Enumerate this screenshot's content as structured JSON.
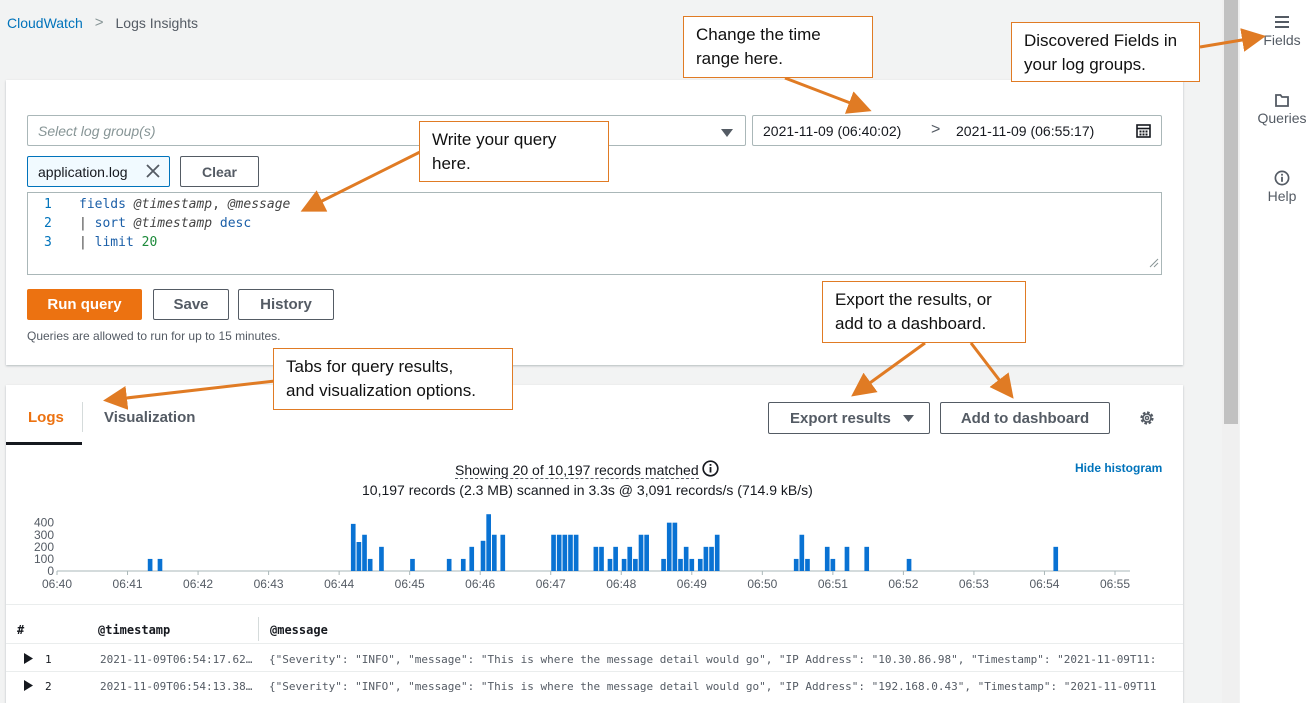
{
  "breadcrumb": {
    "root": "CloudWatch",
    "current": "Logs Insights"
  },
  "query": {
    "log_group_placeholder": "Select log group(s)",
    "time_start": "2021-11-09 (06:40:02)",
    "time_end": "2021-11-09 (06:55:17)",
    "selected_group": "application.log",
    "clear_label": "Clear",
    "lines": [
      {
        "num": "1",
        "tokens": [
          {
            "t": "fields ",
            "c": "kw"
          },
          {
            "t": "@timestamp",
            "c": "field"
          },
          {
            "t": ", ",
            "c": "plain"
          },
          {
            "t": "@message",
            "c": "field"
          }
        ]
      },
      {
        "num": "2",
        "tokens": [
          {
            "t": "| ",
            "c": "pipe"
          },
          {
            "t": "sort ",
            "c": "kw"
          },
          {
            "t": "@timestamp",
            "c": "field"
          },
          {
            "t": " desc",
            "c": "kw"
          }
        ]
      },
      {
        "num": "3",
        "tokens": [
          {
            "t": "| ",
            "c": "pipe"
          },
          {
            "t": "limit ",
            "c": "kw"
          },
          {
            "t": "20",
            "c": "num"
          }
        ]
      }
    ],
    "run_label": "Run query",
    "save_label": "Save",
    "history_label": "History",
    "note": "Queries are allowed to run for up to 15 minutes."
  },
  "results": {
    "tabs": [
      {
        "label": "Logs",
        "active": true
      },
      {
        "label": "Visualization",
        "active": false
      }
    ],
    "export_label": "Export results",
    "dashboard_label": "Add to dashboard",
    "summary": "Showing 20 of 10,197 records matched",
    "scanned": "10,197 records (2.3 MB) scanned in 3.3s @ 3,091 records/s (714.9 kB/s)",
    "hide_histogram": "Hide histogram",
    "columns": {
      "num": "#",
      "timestamp": "@timestamp",
      "message": "@message"
    },
    "rows": [
      {
        "num": "1",
        "timestamp": "2021-11-09T06:54:17.62…",
        "message": "{\"Severity\": \"INFO\", \"message\": \"This is where the message detail would go\", \"IP Address\": \"10.30.86.98\", \"Timestamp\": \"2021-11-09T11:"
      },
      {
        "num": "2",
        "timestamp": "2021-11-09T06:54:13.38…",
        "message": "{\"Severity\": \"INFO\", \"message\": \"This is where the message detail would go\", \"IP Address\": \"192.168.0.43\", \"Timestamp\": \"2021-11-09T11"
      }
    ]
  },
  "rail": {
    "items": [
      {
        "label": "Fields",
        "icon": "menu-icon"
      },
      {
        "label": "Queries",
        "icon": "folder-icon"
      },
      {
        "label": "Help",
        "icon": "info-icon"
      }
    ]
  },
  "callouts": {
    "time": "Change the time\nrange here.",
    "fields": "Discovered Fields in\nyour log groups.",
    "query": "Write your query\nhere.",
    "export": "Export the results, or\nadd to a dashboard.",
    "tabs": "Tabs for query results,\nand visualization options."
  },
  "colors": {
    "accent": "#ec7211",
    "link": "#0073bb",
    "bar": "#0972d3",
    "callout": "#e07b24"
  },
  "chart_data": {
    "type": "bar",
    "x_ticks": [
      "06:40",
      "06:41",
      "06:42",
      "06:43",
      "06:44",
      "06:45",
      "06:46",
      "06:47",
      "06:48",
      "06:49",
      "06:50",
      "06:51",
      "06:52",
      "06:53",
      "06:54",
      "06:55"
    ],
    "y_ticks": [
      "0",
      "100",
      "200",
      "300",
      "400"
    ],
    "ylim": [
      0,
      480
    ],
    "series": [
      {
        "values": [
          [
            6.6,
            100
          ],
          [
            7.3,
            100
          ],
          [
            21.0,
            390
          ],
          [
            21.4,
            240
          ],
          [
            21.8,
            300
          ],
          [
            22.2,
            100
          ],
          [
            23.0,
            200
          ],
          [
            25.2,
            100
          ],
          [
            27.8,
            100
          ],
          [
            28.8,
            100
          ],
          [
            29.4,
            200
          ],
          [
            30.2,
            250
          ],
          [
            30.6,
            470
          ],
          [
            31.0,
            300
          ],
          [
            31.6,
            300
          ],
          [
            35.2,
            300
          ],
          [
            35.6,
            300
          ],
          [
            36.0,
            300
          ],
          [
            36.4,
            300
          ],
          [
            36.8,
            300
          ],
          [
            38.2,
            200
          ],
          [
            38.6,
            200
          ],
          [
            39.2,
            100
          ],
          [
            39.6,
            200
          ],
          [
            40.2,
            100
          ],
          [
            40.6,
            200
          ],
          [
            41.0,
            100
          ],
          [
            41.4,
            300
          ],
          [
            41.8,
            300
          ],
          [
            43.0,
            100
          ],
          [
            43.4,
            400
          ],
          [
            43.8,
            400
          ],
          [
            44.2,
            100
          ],
          [
            44.6,
            200
          ],
          [
            45.0,
            100
          ],
          [
            45.6,
            100
          ],
          [
            46.0,
            200
          ],
          [
            46.4,
            200
          ],
          [
            46.8,
            300
          ],
          [
            52.4,
            100
          ],
          [
            52.8,
            300
          ],
          [
            53.2,
            100
          ],
          [
            54.6,
            200
          ],
          [
            55.0,
            100
          ],
          [
            56.0,
            200
          ],
          [
            57.4,
            200
          ],
          [
            60.4,
            100
          ],
          [
            70.8,
            200
          ]
        ]
      }
    ]
  }
}
